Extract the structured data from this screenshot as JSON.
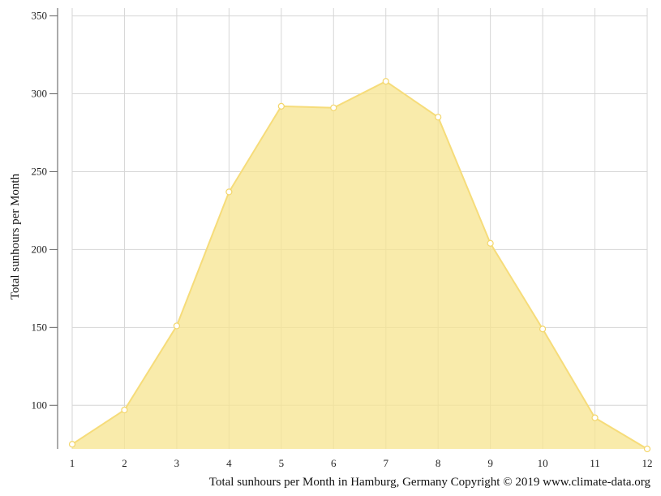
{
  "chart_data": {
    "type": "area",
    "title": "",
    "ylabel": "Total sunhours per Month",
    "xlabel": "",
    "caption": "Total sunhours per Month in Hamburg, Germany Copyright © 2019 www.climate-data.org",
    "x": [
      1,
      2,
      3,
      4,
      5,
      6,
      7,
      8,
      9,
      10,
      11,
      12
    ],
    "values": [
      75,
      97,
      151,
      237,
      292,
      291,
      308,
      285,
      204,
      149,
      92,
      72
    ],
    "ylim": [
      72,
      355
    ],
    "yticks": [
      100,
      150,
      200,
      250,
      300,
      350
    ],
    "grid": true,
    "fill_color": "#f7e48f",
    "line_color": "#f6dc7a",
    "marker_color": "#f3d66b",
    "legend": "none"
  }
}
